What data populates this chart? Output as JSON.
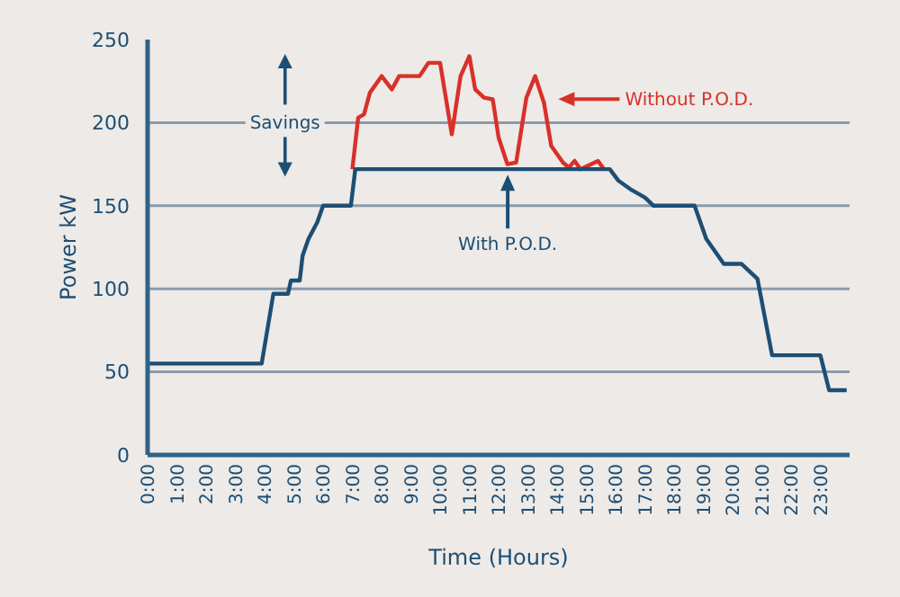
{
  "chart_data": {
    "type": "line",
    "xlabel": "Time (Hours)",
    "ylabel": "Power kW",
    "xlim": [
      0,
      24
    ],
    "ylim": [
      0,
      250
    ],
    "xticks": [
      {
        "value": 0,
        "label": "0:00"
      },
      {
        "value": 1,
        "label": "1:00"
      },
      {
        "value": 2,
        "label": "2:00"
      },
      {
        "value": 3,
        "label": "3:00"
      },
      {
        "value": 4,
        "label": "4:00"
      },
      {
        "value": 5,
        "label": "5:00"
      },
      {
        "value": 6,
        "label": "6:00"
      },
      {
        "value": 7,
        "label": "7:00"
      },
      {
        "value": 8,
        "label": "8:00"
      },
      {
        "value": 9,
        "label": "9:00"
      },
      {
        "value": 10,
        "label": "10:00"
      },
      {
        "value": 11,
        "label": "11:00"
      },
      {
        "value": 12,
        "label": "12:00"
      },
      {
        "value": 13,
        "label": "13:00"
      },
      {
        "value": 14,
        "label": "14:00"
      },
      {
        "value": 15,
        "label": "15:00"
      },
      {
        "value": 16,
        "label": "16:00"
      },
      {
        "value": 17,
        "label": "17:00"
      },
      {
        "value": 18,
        "label": "18:00"
      },
      {
        "value": 19,
        "label": "19:00"
      },
      {
        "value": 20,
        "label": "20:00"
      },
      {
        "value": 21,
        "label": "21:00"
      },
      {
        "value": 22,
        "label": "22:00"
      },
      {
        "value": 23,
        "label": "23:00"
      }
    ],
    "yticks": [
      0,
      50,
      100,
      150,
      200,
      250
    ],
    "grid": "y",
    "marker": "none",
    "line_style": "solid",
    "series": [
      {
        "name": "Without P.O.D.",
        "color": "#d9302a",
        "x": [
          7.0,
          7.2,
          7.4,
          7.6,
          8.0,
          8.35,
          8.6,
          9.3,
          9.6,
          10.0,
          10.4,
          10.7,
          11.0,
          11.2,
          11.5,
          11.8,
          12.0,
          12.3,
          12.6,
          12.95,
          13.25,
          13.55,
          13.8,
          14.2,
          14.4,
          14.6,
          14.8,
          15.4,
          15.6
        ],
        "values": [
          172,
          203,
          205,
          218,
          228,
          220,
          228,
          228,
          236,
          236,
          193,
          228,
          240,
          220,
          215,
          214,
          191,
          175,
          176,
          215,
          228,
          212,
          186,
          176,
          173,
          177,
          172,
          177,
          172
        ]
      },
      {
        "name": "With P.O.D.",
        "color": "#1d4e74",
        "x": [
          0,
          3.9,
          4.3,
          4.8,
          4.9,
          5.2,
          5.3,
          5.5,
          5.8,
          6.0,
          6.95,
          7.1,
          15.8,
          16.1,
          16.5,
          17.0,
          17.3,
          18.7,
          19.1,
          19.7,
          20.3,
          20.85,
          21.35,
          23.0,
          23.3,
          23.9
        ],
        "values": [
          55,
          55,
          97,
          97,
          105,
          105,
          120,
          130,
          140,
          150,
          150,
          172,
          172,
          165,
          160,
          155,
          150,
          150,
          130,
          115,
          115,
          106,
          60,
          60,
          39,
          39
        ]
      }
    ],
    "annotations": [
      {
        "text": "Savings",
        "x": 4.7,
        "y": 200
      }
    ]
  }
}
